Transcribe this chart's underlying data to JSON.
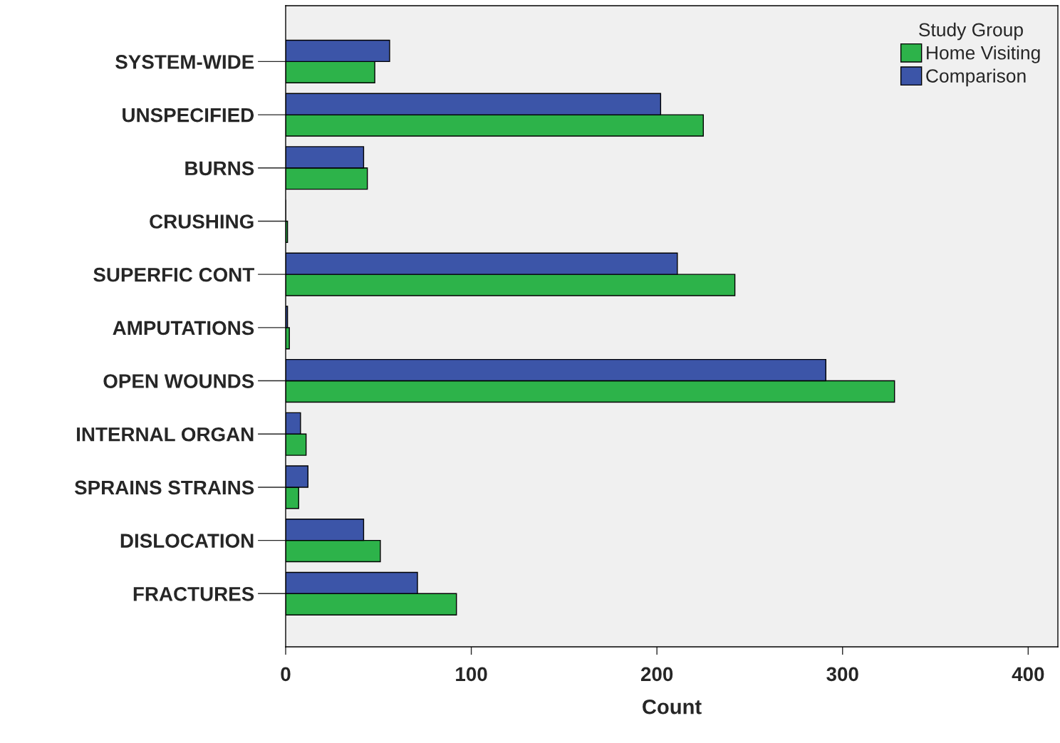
{
  "chart_data": {
    "type": "bar",
    "orientation": "horizontal",
    "xlabel": "Count",
    "legend_title": "Study Group",
    "legend": "top right",
    "grid": false,
    "categories": [
      "SYSTEM-WIDE",
      "UNSPECIFIED",
      "BURNS",
      "CRUSHING",
      "SUPERFIC CONT",
      "AMPUTATIONS",
      "OPEN WOUNDS",
      "INTERNAL ORGAN",
      "SPRAINS STRAINS",
      "DISLOCATION",
      "FRACTURES"
    ],
    "series": [
      {
        "name": "Home Visiting",
        "color": "#2db34a",
        "values": [
          48,
          225,
          44,
          1,
          242,
          2,
          328,
          11,
          7,
          51,
          92
        ]
      },
      {
        "name": "Comparison",
        "color": "#3c55a8",
        "values": [
          56,
          202,
          42,
          0,
          211,
          1,
          291,
          8,
          12,
          42,
          71
        ]
      }
    ],
    "xlim": [
      0,
      416
    ],
    "xticks": [
      0,
      100,
      200,
      300,
      400
    ]
  }
}
